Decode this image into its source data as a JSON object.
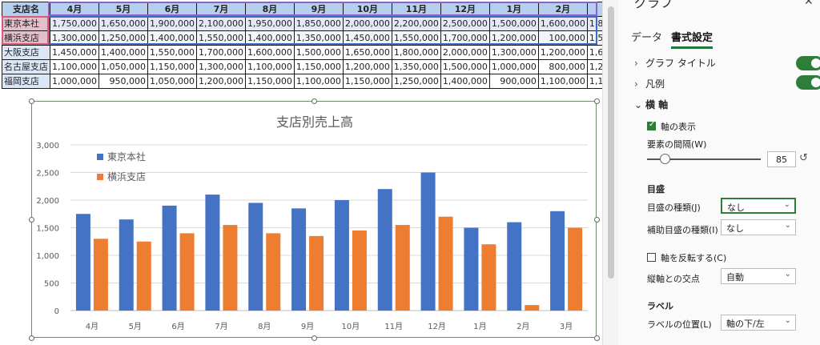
{
  "sheet": {
    "headers": [
      "支店名",
      "4月",
      "5月",
      "6月",
      "7月",
      "8月",
      "9月",
      "10月",
      "11月",
      "12月",
      "1月",
      "2月",
      "3月"
    ],
    "rows": [
      {
        "name": "東京本社",
        "values": [
          "1,750,000",
          "1,650,000",
          "1,900,000",
          "2,100,000",
          "1,950,000",
          "1,850,000",
          "2,000,000",
          "2,200,000",
          "2,500,000",
          "1,500,000",
          "1,600,000",
          "1,800,000"
        ]
      },
      {
        "name": "横浜支店",
        "values": [
          "1,300,000",
          "1,250,000",
          "1,400,000",
          "1,550,000",
          "1,400,000",
          "1,350,000",
          "1,450,000",
          "1,550,000",
          "1,700,000",
          "1,200,000",
          "100,000",
          "1,500,000"
        ]
      },
      {
        "name": "大阪支店",
        "values": [
          "1,450,000",
          "1,400,000",
          "1,550,000",
          "1,700,000",
          "1,600,000",
          "1,500,000",
          "1,650,000",
          "1,800,000",
          "2,000,000",
          "1,300,000",
          "1,200,000",
          "1,600,000"
        ]
      },
      {
        "name": "名古屋支店",
        "values": [
          "1,100,000",
          "1,050,000",
          "1,150,000",
          "1,300,000",
          "1,100,000",
          "1,150,000",
          "1,200,000",
          "1,350,000",
          "1,500,000",
          "1,000,000",
          "800,000",
          "1,200,000"
        ]
      },
      {
        "name": "福岡支店",
        "values": [
          "1,000,000",
          "950,000",
          "1,050,000",
          "1,200,000",
          "1,150,000",
          "1,100,000",
          "1,150,000",
          "1,250,000",
          "1,400,000",
          "900,000",
          "1,100,000",
          "1,100,000"
        ]
      }
    ]
  },
  "chart_data": {
    "type": "bar",
    "title": "支店別売上高",
    "categories": [
      "4月",
      "5月",
      "6月",
      "7月",
      "8月",
      "9月",
      "10月",
      "11月",
      "12月",
      "1月",
      "2月",
      "3月"
    ],
    "series": [
      {
        "name": "東京本社",
        "color": "#4472c4",
        "values": [
          1750,
          1650,
          1900,
          2100,
          1950,
          1850,
          2000,
          2200,
          2500,
          1500,
          1600,
          1800
        ]
      },
      {
        "name": "横浜支店",
        "color": "#ed7d31",
        "values": [
          1300,
          1250,
          1400,
          1550,
          1400,
          1350,
          1450,
          1550,
          1700,
          1200,
          100,
          1500
        ]
      }
    ],
    "yticks": [
      "0",
      "500",
      "1,000",
      "1,500",
      "2,000",
      "2,500",
      "3,000"
    ],
    "ylim": [
      0,
      3000
    ],
    "grid": true,
    "legend": "top-left"
  },
  "pane": {
    "title": "グラフ",
    "close": "✕",
    "tabs": {
      "data": "データ",
      "format": "書式設定"
    },
    "sections": {
      "chart_title": "グラフ タイトル",
      "legend": "凡例",
      "h_axis": "横 軸"
    },
    "axis": {
      "show_axis": "軸の表示",
      "gap_label": "要素の間隔(W)",
      "gap_value": "85",
      "tickmarks_header": "目盛",
      "major_tick_label": "目盛の種類(J)",
      "major_tick_value": "なし",
      "minor_tick_label": "補助目盛の種類(I)",
      "minor_tick_value": "なし",
      "reverse_label": "軸を反転する(C)",
      "cross_label": "縦軸との交点",
      "cross_value": "自動",
      "labels_header": "ラベル",
      "label_pos_label": "ラベルの位置(L)",
      "label_pos_value": "軸の下/左"
    },
    "accent": "#2e7d3b"
  }
}
